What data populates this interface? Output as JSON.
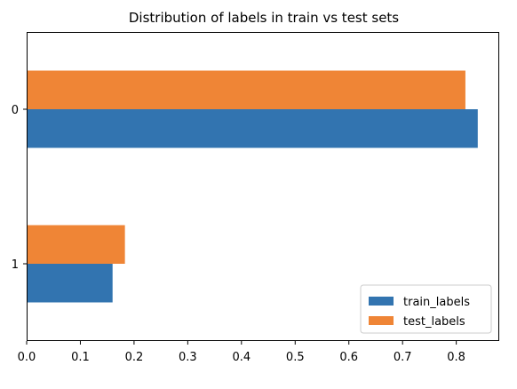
{
  "chart_data": {
    "type": "bar",
    "orientation": "horizontal",
    "title": "Distribution of labels in train vs test sets",
    "xlabel": "",
    "ylabel": "",
    "categories": [
      "0",
      "1"
    ],
    "series": [
      {
        "name": "train_labels",
        "color": "#3274b0",
        "values": [
          0.84,
          0.16
        ]
      },
      {
        "name": "test_labels",
        "color": "#ef8536",
        "values": [
          0.817,
          0.183
        ]
      }
    ],
    "xlim": [
      0,
      0.88
    ],
    "xticks": [
      "0.0",
      "0.1",
      "0.2",
      "0.3",
      "0.4",
      "0.5",
      "0.6",
      "0.7",
      "0.8"
    ],
    "grid": false,
    "legend_position": "bottom-right"
  }
}
